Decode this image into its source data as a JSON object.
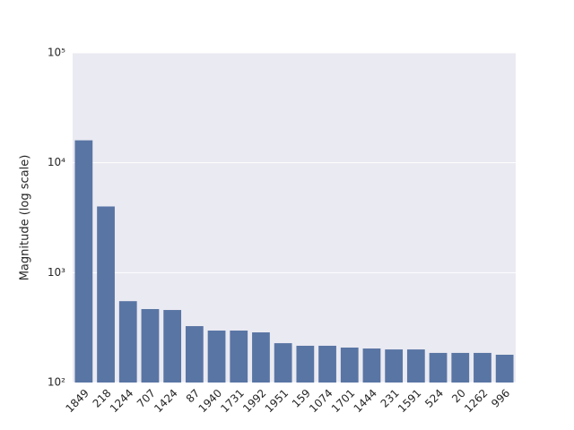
{
  "chart_data": {
    "type": "bar",
    "y_label": "Magnitude (log scale)",
    "categories": [
      "1849",
      "218",
      "1244",
      "707",
      "1424",
      "87",
      "1940",
      "1731",
      "1992",
      "1951",
      "159",
      "1074",
      "1701",
      "1444",
      "231",
      "1591",
      "524",
      "20",
      "1262",
      "996"
    ],
    "values": [
      16000,
      4000,
      550,
      466,
      457,
      326,
      297,
      297,
      286,
      228,
      216,
      216,
      208,
      204,
      200,
      200,
      186,
      186,
      186,
      179
    ],
    "color": "#5975a4",
    "ylim": [
      100,
      100000
    ],
    "yticks": [
      {
        "value": 100,
        "label": "10²"
      },
      {
        "value": 1000,
        "label": "10³"
      },
      {
        "value": 10000,
        "label": "10⁴"
      },
      {
        "value": 100000,
        "label": "10⁵"
      }
    ],
    "log_scale": true,
    "grid": true
  }
}
